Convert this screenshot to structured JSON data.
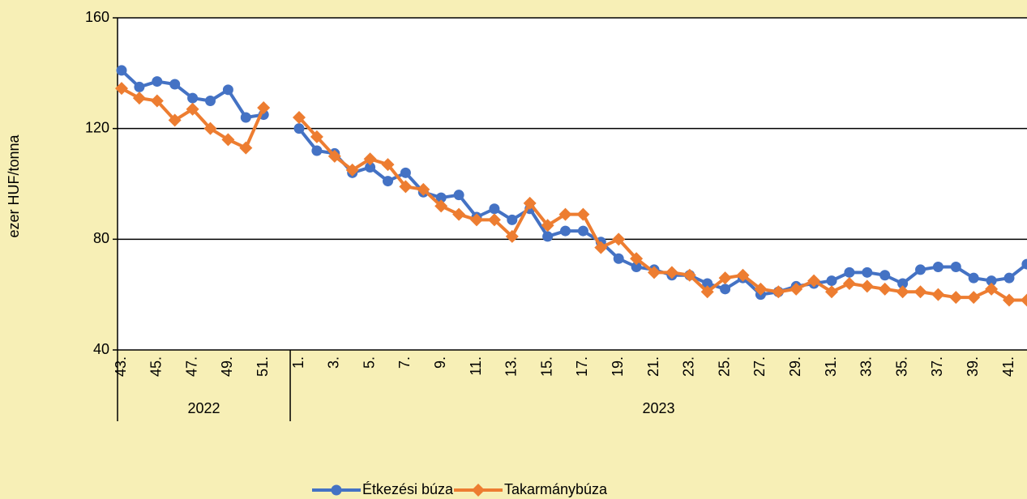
{
  "chart_data": {
    "type": "line",
    "ylabel": "ezer HUF/tonna",
    "categories": [
      "43.",
      null,
      "45.",
      null,
      "47.",
      null,
      "49.",
      null,
      "51.",
      null,
      "1.",
      null,
      "3.",
      null,
      "5.",
      null,
      "7.",
      null,
      "9.",
      null,
      "11.",
      null,
      "13.",
      null,
      "15.",
      null,
      "17.",
      null,
      "19.",
      null,
      "21.",
      null,
      "23.",
      null,
      "25.",
      null,
      "27.",
      null,
      "29.",
      null,
      "31.",
      null,
      "33.",
      null,
      "35.",
      null,
      "37.",
      null,
      "39.",
      null,
      "41.",
      null
    ],
    "groups": [
      {
        "name": "2022",
        "size": 10
      },
      {
        "name": "2023",
        "size": 42
      }
    ],
    "series": [
      {
        "name": "Étkezési búza",
        "color": "#4472c4",
        "marker": "circle",
        "values": [
          141,
          135,
          137,
          136,
          131,
          130,
          134,
          124,
          125,
          null,
          120,
          112,
          111,
          104,
          106,
          101,
          104,
          97,
          95,
          96,
          88,
          91,
          87,
          91,
          81,
          83,
          83,
          79,
          73,
          70,
          69,
          67,
          67,
          64,
          62,
          66,
          60,
          61,
          63,
          64,
          65,
          68,
          68,
          67,
          64,
          69,
          70,
          70,
          66,
          65,
          66,
          71
        ]
      },
      {
        "name": "Takarmánybúza",
        "color": "#ed7d31",
        "marker": "diamond",
        "values": [
          134.5,
          131,
          130,
          123,
          127,
          120,
          116,
          113,
          127.5,
          null,
          124,
          117,
          110,
          105,
          109,
          107,
          99,
          98,
          92,
          89,
          87,
          87,
          81,
          93,
          85,
          89,
          89,
          77,
          80,
          73,
          68,
          68,
          67,
          61,
          66,
          67,
          62,
          61,
          62,
          65,
          61,
          64,
          63,
          62,
          61,
          61,
          60,
          59,
          59,
          62,
          58,
          58
        ]
      }
    ],
    "ylim": [
      40,
      160
    ],
    "yticks": [
      40,
      80,
      120,
      160
    ],
    "grid": true
  }
}
